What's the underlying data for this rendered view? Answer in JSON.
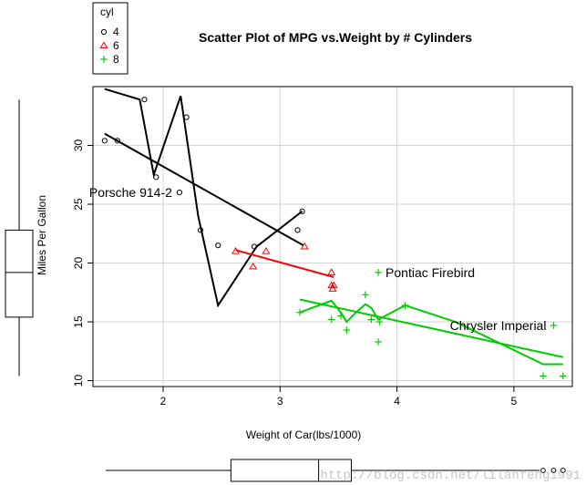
{
  "chart_data": {
    "type": "scatter",
    "title": "Scatter Plot of MPG vs.Weight by # Cylinders",
    "xlabel": "Weight of Car(lbs/1000)",
    "ylabel": "Miles Per Gallon",
    "xlim": [
      1.4,
      5.5
    ],
    "ylim": [
      9.5,
      35
    ],
    "xticks": [
      2,
      3,
      4,
      5
    ],
    "yticks": [
      10,
      15,
      20,
      25,
      30
    ],
    "grid": true,
    "legend": {
      "title": "cyl",
      "position": "top-left"
    },
    "series": [
      {
        "name": "4",
        "marker": "circle",
        "color": "#000000",
        "points": [
          [
            1.5,
            30.4
          ],
          [
            1.61,
            30.4
          ],
          [
            1.84,
            33.9
          ],
          [
            1.94,
            27.3
          ],
          [
            2.14,
            26.0
          ],
          [
            2.2,
            32.4
          ],
          [
            2.32,
            22.8
          ],
          [
            2.47,
            21.5
          ],
          [
            2.78,
            21.4
          ],
          [
            3.15,
            22.8
          ],
          [
            3.19,
            24.4
          ]
        ],
        "fit_line": [
          [
            1.5,
            31.0
          ],
          [
            3.2,
            21.5
          ]
        ],
        "smooth_curve": [
          [
            1.5,
            34.8
          ],
          [
            1.8,
            33.9
          ],
          [
            1.92,
            27.5
          ],
          [
            2.15,
            34.2
          ],
          [
            2.3,
            24.0
          ],
          [
            2.47,
            16.4
          ],
          [
            2.8,
            21.4
          ],
          [
            3.19,
            24.4
          ]
        ]
      },
      {
        "name": "6",
        "marker": "triangle",
        "color": "#ff0000",
        "points": [
          [
            2.62,
            21.0
          ],
          [
            2.77,
            19.7
          ],
          [
            2.88,
            21.0
          ],
          [
            3.21,
            21.4
          ],
          [
            3.44,
            18.1
          ],
          [
            3.44,
            19.2
          ],
          [
            3.46,
            18.1
          ],
          [
            3.45,
            17.8
          ]
        ],
        "fit_line": [
          [
            2.62,
            21.1
          ],
          [
            3.46,
            18.8
          ]
        ]
      },
      {
        "name": "8",
        "marker": "plus",
        "color": "#00cc00",
        "points": [
          [
            3.17,
            15.8
          ],
          [
            3.44,
            15.2
          ],
          [
            3.52,
            15.5
          ],
          [
            3.57,
            14.3
          ],
          [
            3.73,
            17.3
          ],
          [
            3.78,
            15.2
          ],
          [
            3.84,
            19.2
          ],
          [
            3.84,
            13.3
          ],
          [
            3.85,
            15.0
          ],
          [
            4.07,
            16.4
          ],
          [
            5.25,
            10.4
          ],
          [
            5.34,
            14.7
          ],
          [
            5.42,
            10.4
          ]
        ],
        "fit_line": [
          [
            3.17,
            16.9
          ],
          [
            5.42,
            12.0
          ]
        ],
        "smooth_curve": [
          [
            3.17,
            15.8
          ],
          [
            3.44,
            16.8
          ],
          [
            3.52,
            15.8
          ],
          [
            3.57,
            15.0
          ],
          [
            3.65,
            15.8
          ],
          [
            3.73,
            16.5
          ],
          [
            3.78,
            16.2
          ],
          [
            3.84,
            15.2
          ],
          [
            4.07,
            16.4
          ],
          [
            4.5,
            15.0
          ],
          [
            5.25,
            11.4
          ],
          [
            5.42,
            11.4
          ]
        ]
      }
    ],
    "annotations": [
      {
        "text": "Porsche 914-2",
        "x": 2.14,
        "y": 26.0
      },
      {
        "text": "Pontiac Firebird",
        "x": 3.84,
        "y": 19.2
      },
      {
        "text": "Chrysler Imperial",
        "x": 5.34,
        "y": 14.7
      }
    ],
    "marginal_boxplots": {
      "y_mpg": {
        "min": 10.4,
        "q1": 15.4,
        "median": 19.2,
        "q3": 22.8,
        "max": 33.9
      },
      "x_weight": {
        "min": 1.51,
        "q1": 2.58,
        "median": 3.33,
        "q3": 3.61,
        "max": 5.42,
        "outliers": [
          5.25,
          5.34,
          5.42
        ]
      }
    },
    "watermark": "http://blog.csdn.net/lilanfeng1991"
  }
}
